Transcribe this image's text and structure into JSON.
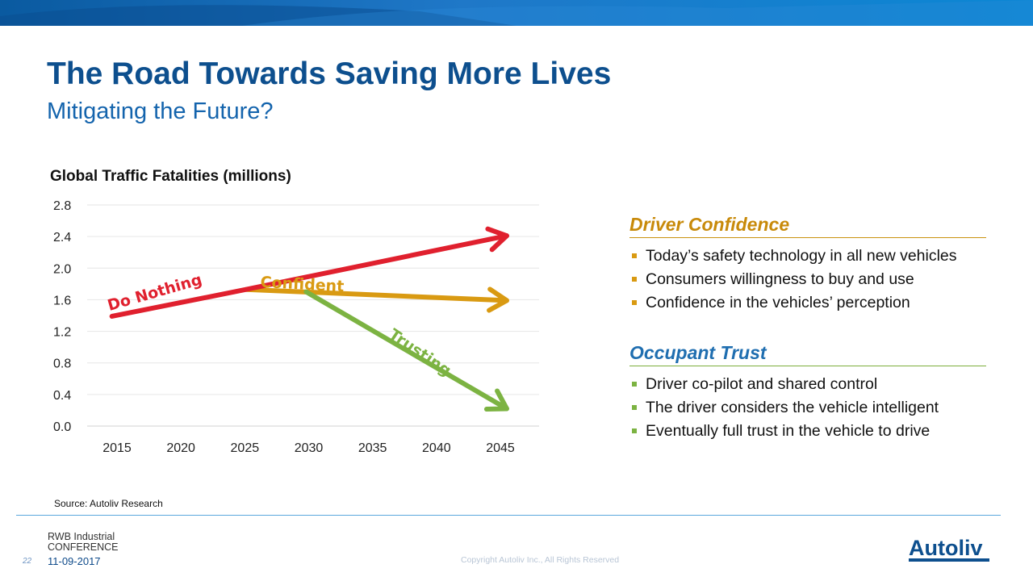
{
  "slide": {
    "title": "The Road Towards Saving More Lives",
    "subtitle": "Mitigating the Future?"
  },
  "chart_data": {
    "type": "line",
    "title": "Global Traffic Fatalities (millions)",
    "xlabel": "",
    "ylabel": "",
    "x_ticks": [
      "2015",
      "2020",
      "2025",
      "2030",
      "2035",
      "2040",
      "2045"
    ],
    "y_ticks": [
      "0.0",
      "0.4",
      "0.8",
      "1.2",
      "1.6",
      "2.0",
      "2.4",
      "2.8"
    ],
    "xlim": [
      2013,
      2048
    ],
    "ylim": [
      0,
      2.8
    ],
    "grid": "horizontal",
    "series": [
      {
        "name": "Do Nothing",
        "color": "#e0202e",
        "points": [
          [
            2014.6,
            1.39
          ],
          [
            2025.1,
            1.73
          ],
          [
            2045.5,
            2.41
          ]
        ]
      },
      {
        "name": "Confident",
        "color": "#d99a12",
        "points": [
          [
            2025.1,
            1.73
          ],
          [
            2045.5,
            1.59
          ]
        ]
      },
      {
        "name": "Trusting",
        "color": "#7cb342",
        "points": [
          [
            2029.8,
            1.7
          ],
          [
            2045.5,
            0.22
          ]
        ]
      }
    ]
  },
  "panels": {
    "driver_confidence": {
      "heading": "Driver Confidence",
      "bullet_color": "#d99a12",
      "items": [
        "Today’s safety technology in all new vehicles",
        "Consumers willingness to buy and use",
        "Confidence in the vehicles’ perception"
      ]
    },
    "occupant_trust": {
      "heading": "Occupant Trust",
      "bullet_color": "#7cb342",
      "items": [
        "Driver co-pilot and shared control",
        "The driver considers the vehicle intelligent",
        "Eventually full trust in the vehicle to drive"
      ]
    }
  },
  "footer": {
    "source": "Source: Autoliv Research",
    "conference_line1": "RWB Industrial",
    "conference_line2": "CONFERENCE",
    "page_number": "22",
    "date": "11-09-2017",
    "copyright": "Copyright Autoliv Inc., All Rights Reserved",
    "logo_text": "Autoliv",
    "logo_color": "#0d4f8e"
  }
}
